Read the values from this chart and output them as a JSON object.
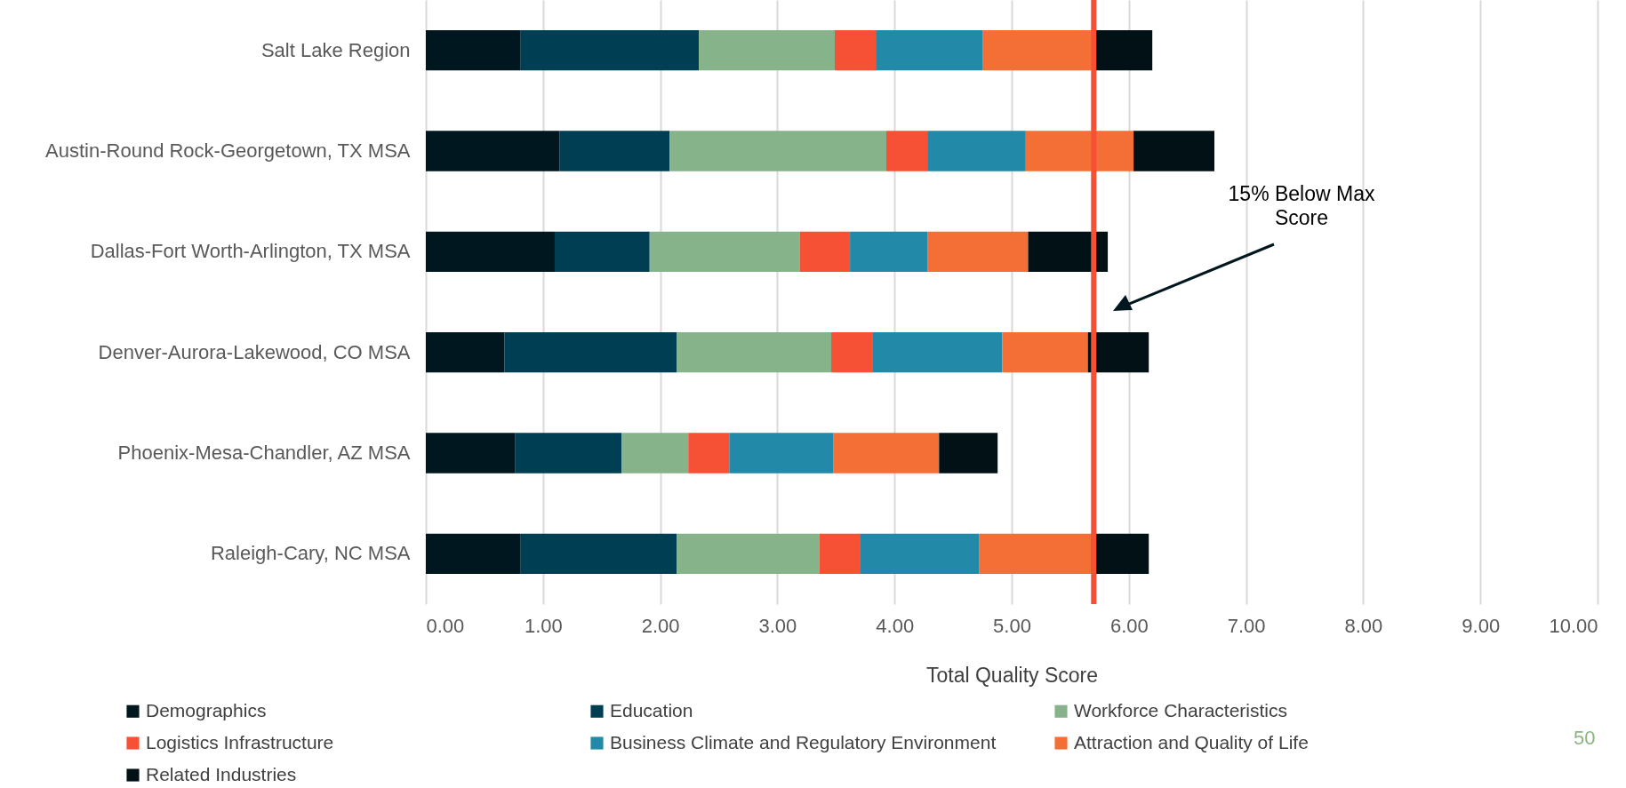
{
  "chart_data": {
    "type": "bar",
    "orientation": "horizontal",
    "stacked": true,
    "xlabel": "Total Quality Score",
    "categories": [
      "Salt Lake Region",
      "Austin-Round Rock-Georgetown, TX MSA",
      "Dallas-Fort Worth-Arlington, TX MSA",
      "Denver-Aurora-Lakewood, CO MSA",
      "Phoenix-Mesa-Chandler, AZ MSA",
      "Raleigh-Cary, NC MSA"
    ],
    "series": [
      {
        "name": "Demographics",
        "color": "#00171f",
        "values": [
          0.81,
          1.14,
          1.1,
          0.67,
          0.76,
          0.81
        ]
      },
      {
        "name": "Education",
        "color": "#003f53",
        "values": [
          1.52,
          0.94,
          0.81,
          1.47,
          0.91,
          1.33
        ]
      },
      {
        "name": "Workforce Characteristics",
        "color": "#87b38a",
        "values": [
          1.16,
          1.85,
          1.28,
          1.32,
          0.57,
          1.22
        ]
      },
      {
        "name": "Logistics Infrastructure",
        "color": "#f65134",
        "values": [
          0.35,
          0.35,
          0.43,
          0.35,
          0.35,
          0.35
        ]
      },
      {
        "name": "Business Climate and Regulatory Environment",
        "color": "#2289a8",
        "values": [
          0.91,
          0.84,
          0.66,
          1.11,
          0.89,
          1.01
        ]
      },
      {
        "name": "Attraction and Quality of Life",
        "color": "#f46f35",
        "values": [
          0.97,
          0.92,
          0.86,
          0.73,
          0.9,
          0.96
        ]
      },
      {
        "name": "Related Industries",
        "color": "#011116",
        "values": [
          0.48,
          0.69,
          0.68,
          0.52,
          0.5,
          0.49
        ]
      }
    ],
    "xlim": [
      0,
      10
    ],
    "xticks": [
      {
        "value": 0,
        "label": "0.00"
      },
      {
        "value": 1,
        "label": "1.00"
      },
      {
        "value": 2,
        "label": "2.00"
      },
      {
        "value": 3,
        "label": "3.00"
      },
      {
        "value": 4,
        "label": "4.00"
      },
      {
        "value": 5,
        "label": "5.00"
      },
      {
        "value": 6,
        "label": "6.00"
      },
      {
        "value": 7,
        "label": "7.00"
      },
      {
        "value": 8,
        "label": "8.00"
      },
      {
        "value": 9,
        "label": "9.00"
      },
      {
        "value": 10,
        "label": "10.00"
      }
    ],
    "grid": "x",
    "legend": "bottom",
    "ref_lines": [
      {
        "axis": "x",
        "value": 5.7,
        "label": null,
        "color": "#f65134"
      }
    ],
    "annotations": [
      "15% Below Max Score",
      "50"
    ]
  }
}
